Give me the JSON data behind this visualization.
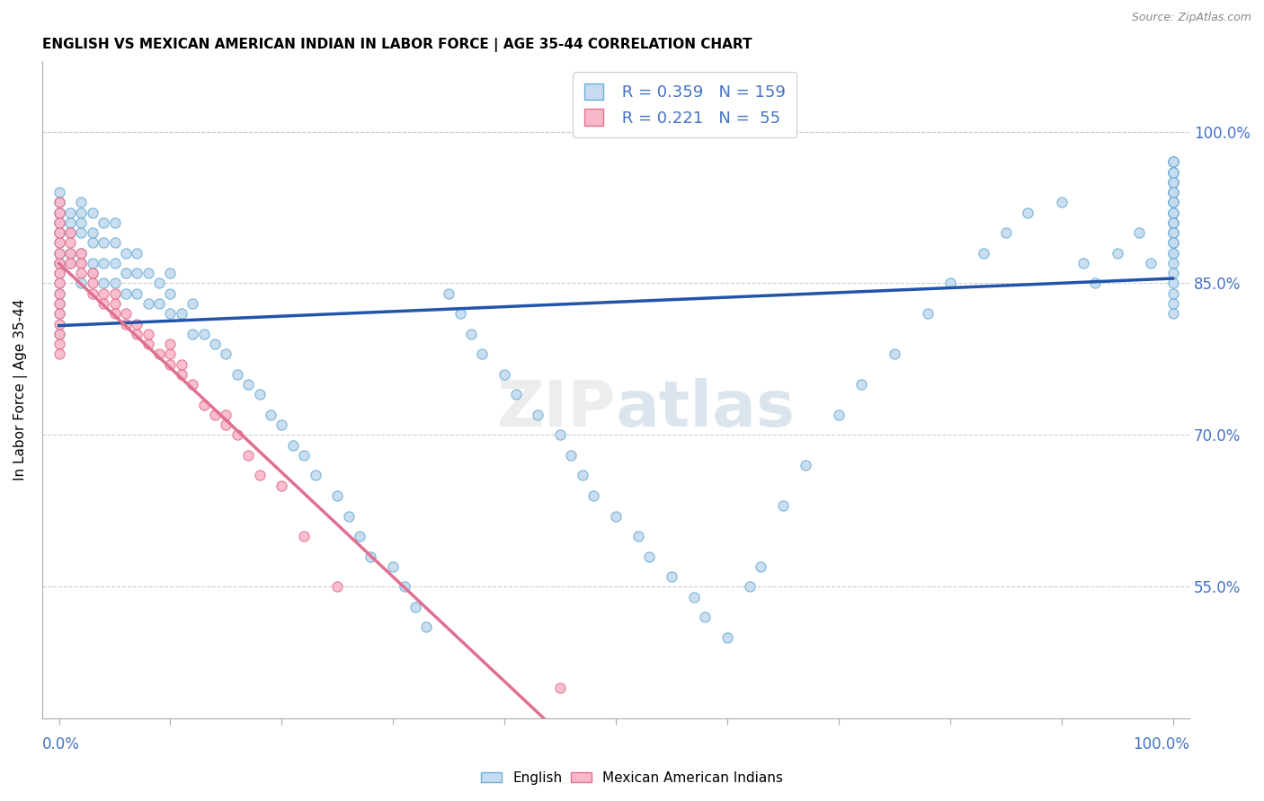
{
  "title": "ENGLISH VS MEXICAN AMERICAN INDIAN IN LABOR FORCE | AGE 35-44 CORRELATION CHART",
  "source": "Source: ZipAtlas.com",
  "ylabel": "In Labor Force | Age 35-44",
  "y_tick_vals": [
    0.55,
    0.7,
    0.85,
    1.0
  ],
  "legend_english_R": "R = 0.359",
  "legend_english_N": "N = 159",
  "legend_mexican_R": "R = 0.221",
  "legend_mexican_N": "N =  55",
  "watermark": "ZIPatlas",
  "english_color_fill": "#c6dbef",
  "english_color_edge": "#6baed6",
  "mexican_color_fill": "#f9b8c8",
  "mexican_color_edge": "#e07090",
  "trend_english_color": "#2255aa",
  "trend_mexican_color": "#e07090",
  "trend_mexican_dash": "#d0a0b0",
  "english_x": [
    0.0,
    0.0,
    0.0,
    0.0,
    0.0,
    0.0,
    0.0,
    0.0,
    0.0,
    0.0,
    0.0,
    0.0,
    0.0,
    0.0,
    0.0,
    0.0,
    0.0,
    0.0,
    0.0,
    0.0,
    0.01,
    0.01,
    0.01,
    0.01,
    0.01,
    0.02,
    0.02,
    0.02,
    0.02,
    0.02,
    0.02,
    0.02,
    0.03,
    0.03,
    0.03,
    0.03,
    0.03,
    0.04,
    0.04,
    0.04,
    0.04,
    0.05,
    0.05,
    0.05,
    0.05,
    0.06,
    0.06,
    0.06,
    0.07,
    0.07,
    0.07,
    0.08,
    0.08,
    0.09,
    0.09,
    0.1,
    0.1,
    0.1,
    0.11,
    0.12,
    0.12,
    0.13,
    0.14,
    0.15,
    0.16,
    0.17,
    0.18,
    0.19,
    0.2,
    0.21,
    0.22,
    0.23,
    0.25,
    0.26,
    0.27,
    0.28,
    0.3,
    0.31,
    0.32,
    0.33,
    0.35,
    0.36,
    0.37,
    0.38,
    0.4,
    0.41,
    0.43,
    0.45,
    0.46,
    0.47,
    0.48,
    0.5,
    0.52,
    0.53,
    0.55,
    0.57,
    0.58,
    0.6,
    0.62,
    0.63,
    0.65,
    0.67,
    0.7,
    0.72,
    0.75,
    0.78,
    0.8,
    0.83,
    0.85,
    0.87,
    0.9,
    0.92,
    0.93,
    0.95,
    0.97,
    0.98,
    1.0,
    1.0,
    1.0,
    1.0,
    1.0,
    1.0,
    1.0,
    1.0,
    1.0,
    1.0,
    1.0,
    1.0,
    1.0,
    1.0,
    1.0,
    1.0,
    1.0,
    1.0,
    1.0,
    1.0,
    1.0,
    1.0,
    1.0,
    1.0,
    1.0,
    1.0,
    1.0,
    1.0,
    1.0,
    1.0,
    1.0,
    1.0,
    1.0,
    1.0,
    1.0,
    1.0,
    1.0,
    1.0,
    1.0,
    1.0,
    1.0,
    1.0,
    1.0
  ],
  "english_y": [
    0.84,
    0.86,
    0.87,
    0.88,
    0.89,
    0.9,
    0.91,
    0.92,
    0.93,
    0.94,
    0.83,
    0.85,
    0.87,
    0.88,
    0.9,
    0.91,
    0.92,
    0.93,
    0.82,
    0.8,
    0.87,
    0.88,
    0.9,
    0.91,
    0.92,
    0.85,
    0.87,
    0.88,
    0.9,
    0.91,
    0.92,
    0.93,
    0.86,
    0.87,
    0.89,
    0.9,
    0.92,
    0.85,
    0.87,
    0.89,
    0.91,
    0.85,
    0.87,
    0.89,
    0.91,
    0.84,
    0.86,
    0.88,
    0.84,
    0.86,
    0.88,
    0.83,
    0.86,
    0.83,
    0.85,
    0.82,
    0.84,
    0.86,
    0.82,
    0.8,
    0.83,
    0.8,
    0.79,
    0.78,
    0.76,
    0.75,
    0.74,
    0.72,
    0.71,
    0.69,
    0.68,
    0.66,
    0.64,
    0.62,
    0.6,
    0.58,
    0.57,
    0.55,
    0.53,
    0.51,
    0.84,
    0.82,
    0.8,
    0.78,
    0.76,
    0.74,
    0.72,
    0.7,
    0.68,
    0.66,
    0.64,
    0.62,
    0.6,
    0.58,
    0.56,
    0.54,
    0.52,
    0.5,
    0.55,
    0.57,
    0.63,
    0.67,
    0.72,
    0.75,
    0.78,
    0.82,
    0.85,
    0.88,
    0.9,
    0.92,
    0.93,
    0.87,
    0.85,
    0.88,
    0.9,
    0.87,
    0.97,
    0.96,
    0.95,
    0.94,
    0.93,
    0.92,
    0.91,
    0.9,
    0.97,
    0.96,
    0.95,
    0.94,
    0.93,
    0.92,
    0.91,
    0.9,
    0.89,
    0.97,
    0.96,
    0.95,
    0.94,
    0.93,
    0.92,
    0.91,
    0.9,
    0.89,
    0.88,
    0.97,
    0.96,
    0.95,
    0.94,
    0.93,
    0.92,
    0.91,
    0.9,
    0.89,
    0.88,
    0.87,
    0.86,
    0.85,
    0.84,
    0.83,
    0.82
  ],
  "mexican_x": [
    0.0,
    0.0,
    0.0,
    0.0,
    0.0,
    0.0,
    0.0,
    0.0,
    0.0,
    0.0,
    0.0,
    0.0,
    0.0,
    0.0,
    0.0,
    0.0,
    0.01,
    0.01,
    0.01,
    0.01,
    0.02,
    0.02,
    0.02,
    0.03,
    0.03,
    0.03,
    0.04,
    0.04,
    0.05,
    0.05,
    0.05,
    0.06,
    0.06,
    0.07,
    0.07,
    0.08,
    0.08,
    0.09,
    0.1,
    0.1,
    0.1,
    0.11,
    0.11,
    0.12,
    0.13,
    0.14,
    0.15,
    0.15,
    0.16,
    0.17,
    0.18,
    0.2,
    0.22,
    0.25,
    0.45
  ],
  "mexican_y": [
    0.89,
    0.9,
    0.91,
    0.92,
    0.93,
    0.87,
    0.88,
    0.86,
    0.85,
    0.84,
    0.83,
    0.82,
    0.81,
    0.8,
    0.79,
    0.78,
    0.88,
    0.89,
    0.9,
    0.87,
    0.87,
    0.88,
    0.86,
    0.85,
    0.86,
    0.84,
    0.83,
    0.84,
    0.82,
    0.83,
    0.84,
    0.81,
    0.82,
    0.8,
    0.81,
    0.79,
    0.8,
    0.78,
    0.77,
    0.78,
    0.79,
    0.76,
    0.77,
    0.75,
    0.73,
    0.72,
    0.71,
    0.72,
    0.7,
    0.68,
    0.66,
    0.65,
    0.6,
    0.55,
    0.45
  ]
}
